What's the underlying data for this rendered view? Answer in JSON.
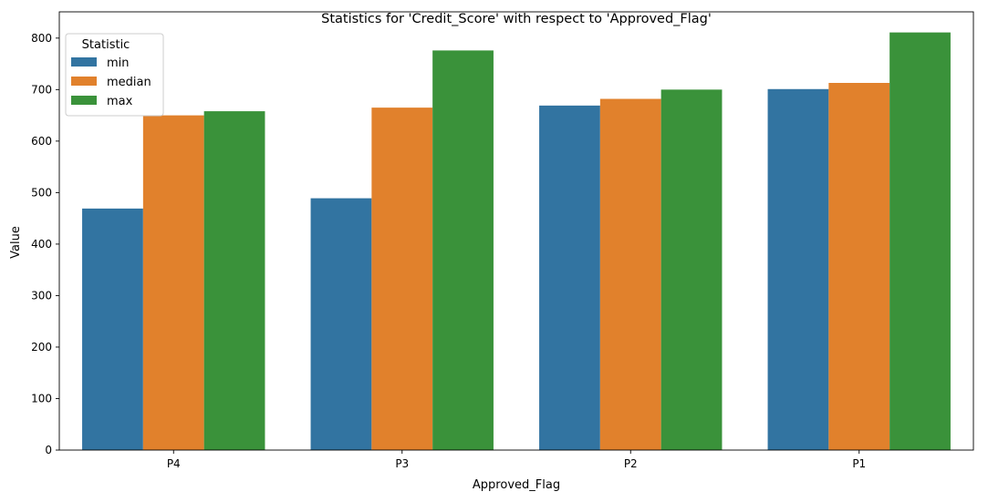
{
  "chart_data": {
    "type": "bar",
    "title": "Statistics for 'Credit_Score' with respect to 'Approved_Flag'",
    "xlabel": "Approved_Flag",
    "ylabel": "Value",
    "categories": [
      "P4",
      "P3",
      "P2",
      "P1"
    ],
    "series": [
      {
        "name": "min",
        "values": [
          469,
          489,
          669,
          701
        ],
        "color": "#3274a1"
      },
      {
        "name": "median",
        "values": [
          650,
          665,
          682,
          713
        ],
        "color": "#e1812c"
      },
      {
        "name": "max",
        "values": [
          658,
          776,
          700,
          811
        ],
        "color": "#3a923a"
      }
    ],
    "ylim": [
      0,
      851
    ],
    "yticks": [
      0,
      100,
      200,
      300,
      400,
      500,
      600,
      700,
      800
    ],
    "legend": {
      "title": "Statistic",
      "placement": "top-left"
    },
    "grid": false
  }
}
